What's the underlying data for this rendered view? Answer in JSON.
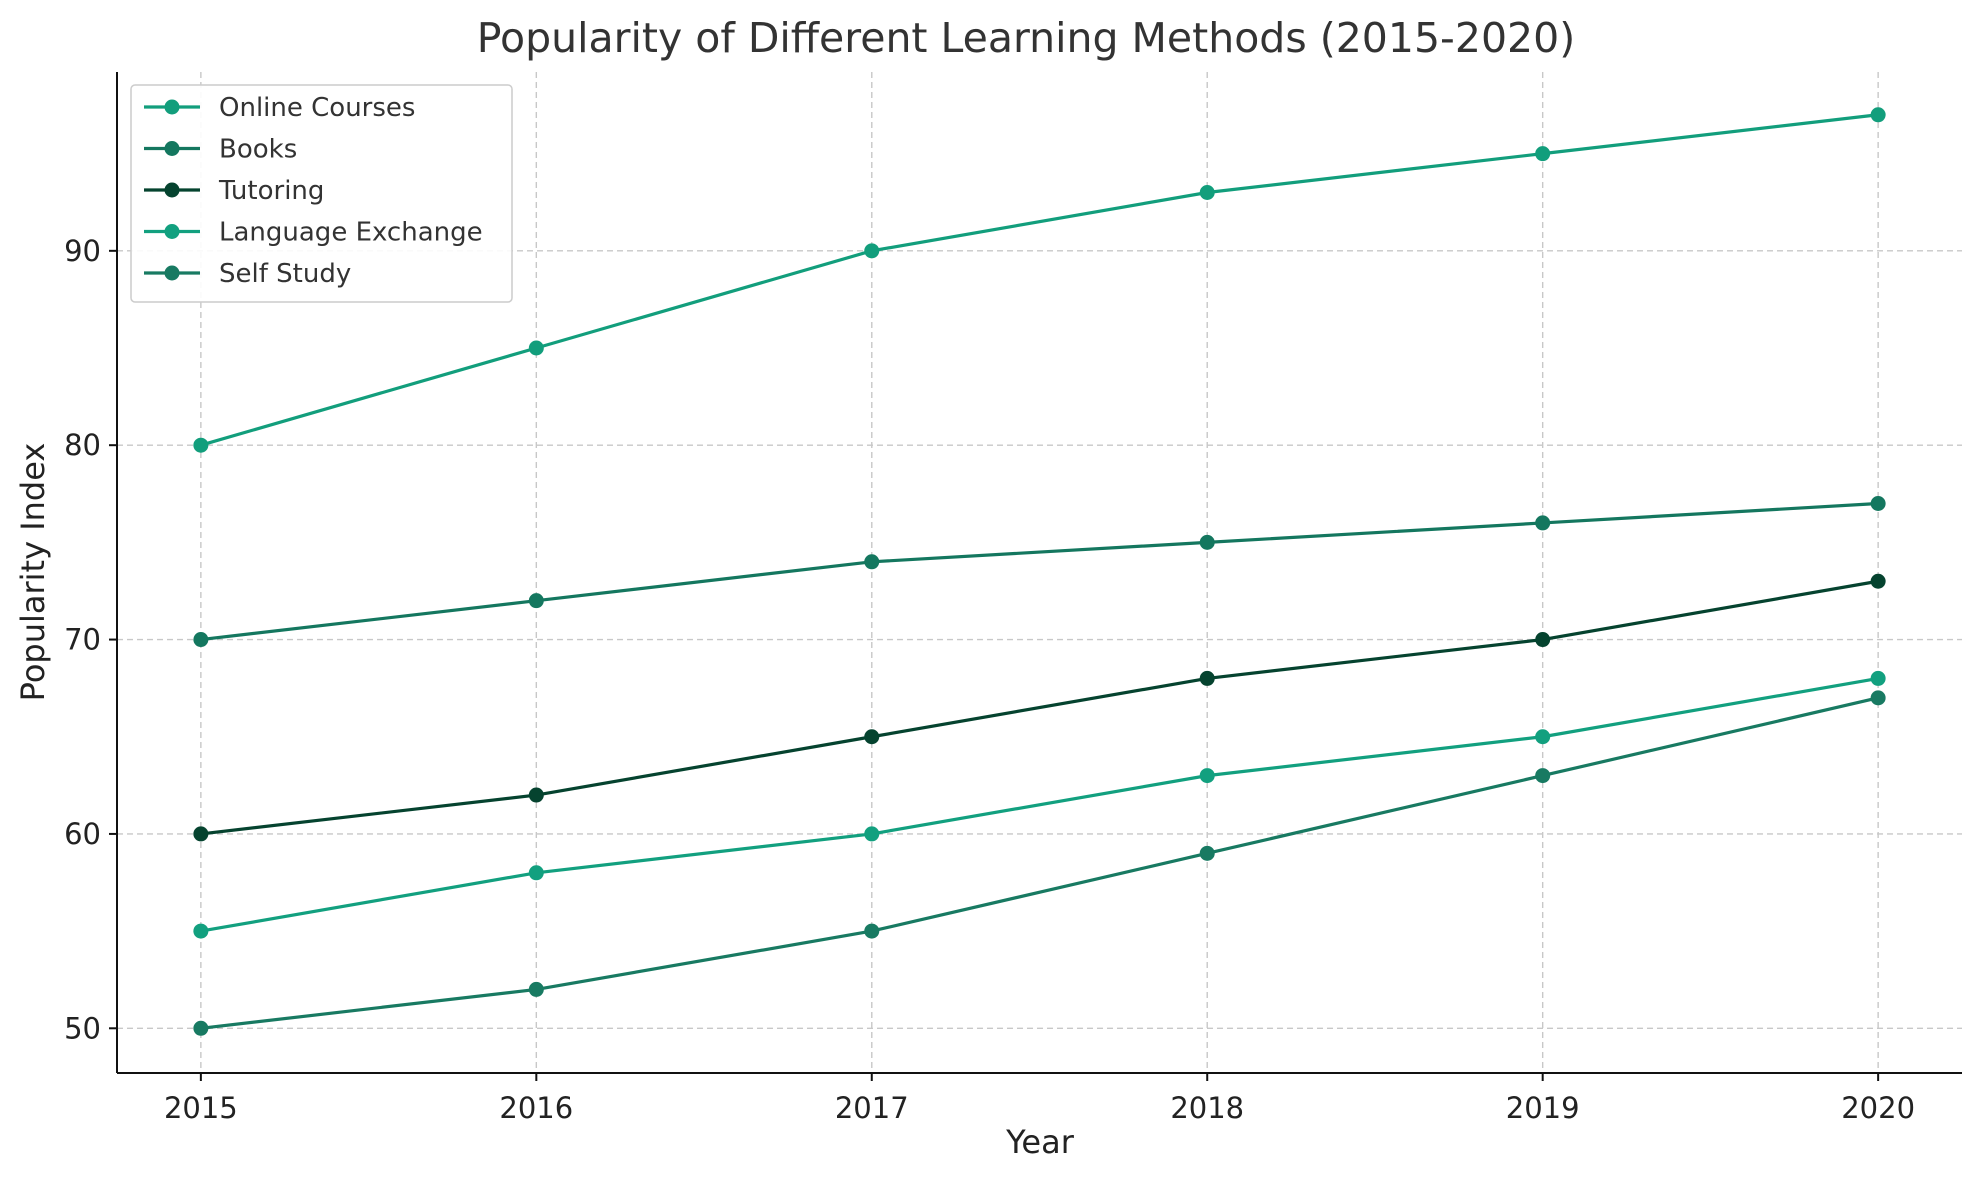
{
  "chart_data": {
    "type": "line",
    "title": "Popularity of Different Learning Methods (2015-2020)",
    "xlabel": "Year",
    "ylabel": "Popularity Index",
    "x": [
      2015,
      2016,
      2017,
      2018,
      2019,
      2020
    ],
    "x_tick_labels": [
      "2015",
      "2016",
      "2017",
      "2018",
      "2019",
      "2020"
    ],
    "y_ticks": [
      50,
      60,
      70,
      80,
      90
    ],
    "y_tick_labels": [
      "50",
      "60",
      "70",
      "80",
      "90"
    ],
    "ylim": [
      47.7,
      99.2
    ],
    "xlim": [
      2014.75,
      2020.25
    ],
    "grid": true,
    "legend_position": "top-left",
    "series": [
      {
        "name": "Online Courses",
        "color": "#129e7c",
        "values": [
          80,
          85,
          90,
          93,
          95,
          97
        ]
      },
      {
        "name": "Books",
        "color": "#14775f",
        "values": [
          70,
          72,
          74,
          75,
          76,
          77
        ]
      },
      {
        "name": "Tutoring",
        "color": "#05432f",
        "values": [
          60,
          62,
          65,
          68,
          70,
          73
        ]
      },
      {
        "name": "Language Exchange",
        "color": "#12a07f",
        "values": [
          55,
          58,
          60,
          63,
          65,
          68
        ]
      },
      {
        "name": "Self Study",
        "color": "#187a62",
        "values": [
          50,
          52,
          55,
          59,
          63,
          67
        ]
      }
    ]
  }
}
